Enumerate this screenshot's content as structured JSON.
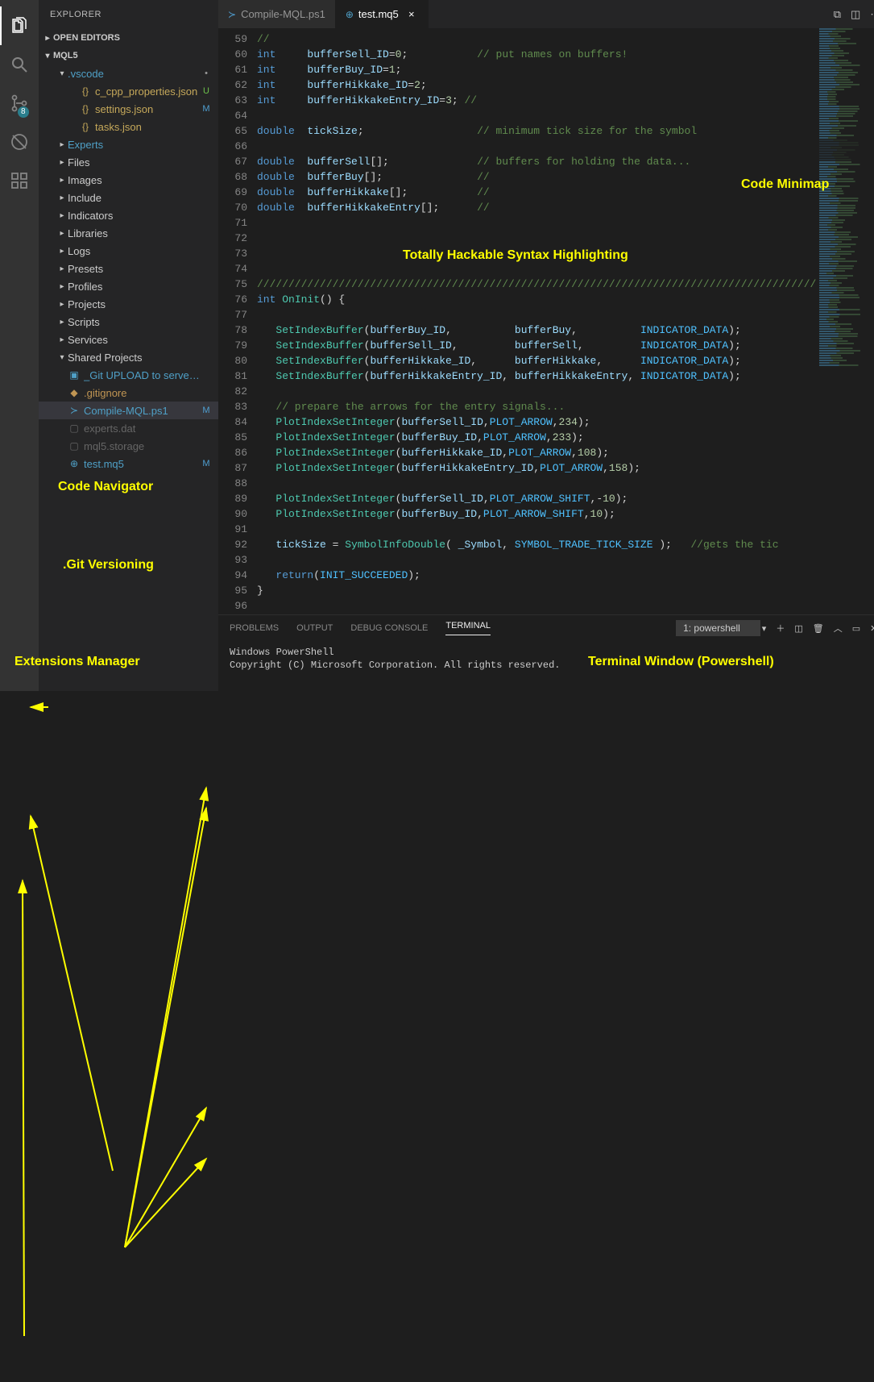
{
  "activityBar": {
    "explorer": "Explorer",
    "search": "Search",
    "scm": "Source Control",
    "scmBadge": "8",
    "debug": "Debug",
    "extensions": "Extensions"
  },
  "sidebar": {
    "title": "EXPLORER",
    "openEditors": "OPEN EDITORS",
    "workspace": "MQL5",
    "tree": [
      {
        "depth": 1,
        "chev": "▾",
        "icon": "",
        "label": ".vscode",
        "cls": "blue",
        "status": "dot"
      },
      {
        "depth": 2,
        "chev": "",
        "icon": "{}",
        "label": "c_cpp_properties.json",
        "cls": "yellowish",
        "status": "U"
      },
      {
        "depth": 2,
        "chev": "",
        "icon": "{}",
        "label": "settings.json",
        "cls": "yellowish",
        "status": "M"
      },
      {
        "depth": 2,
        "chev": "",
        "icon": "{}",
        "label": "tasks.json",
        "cls": "yellowish",
        "status": ""
      },
      {
        "depth": 1,
        "chev": "▸",
        "icon": "",
        "label": "Experts",
        "cls": "blue",
        "status": ""
      },
      {
        "depth": 1,
        "chev": "▸",
        "icon": "",
        "label": "Files",
        "cls": "",
        "status": ""
      },
      {
        "depth": 1,
        "chev": "▸",
        "icon": "",
        "label": "Images",
        "cls": "",
        "status": ""
      },
      {
        "depth": 1,
        "chev": "▸",
        "icon": "",
        "label": "Include",
        "cls": "",
        "status": ""
      },
      {
        "depth": 1,
        "chev": "▸",
        "icon": "",
        "label": "Indicators",
        "cls": "",
        "status": ""
      },
      {
        "depth": 1,
        "chev": "▸",
        "icon": "",
        "label": "Libraries",
        "cls": "",
        "status": ""
      },
      {
        "depth": 1,
        "chev": "▸",
        "icon": "",
        "label": "Logs",
        "cls": "",
        "status": ""
      },
      {
        "depth": 1,
        "chev": "▸",
        "icon": "",
        "label": "Presets",
        "cls": "",
        "status": ""
      },
      {
        "depth": 1,
        "chev": "▸",
        "icon": "",
        "label": "Profiles",
        "cls": "",
        "status": ""
      },
      {
        "depth": 1,
        "chev": "▸",
        "icon": "",
        "label": "Projects",
        "cls": "",
        "status": ""
      },
      {
        "depth": 1,
        "chev": "▸",
        "icon": "",
        "label": "Scripts",
        "cls": "",
        "status": ""
      },
      {
        "depth": 1,
        "chev": "▸",
        "icon": "",
        "label": "Services",
        "cls": "",
        "status": ""
      },
      {
        "depth": 1,
        "chev": "▾",
        "icon": "",
        "label": "Shared Projects",
        "cls": "",
        "status": ""
      },
      {
        "depth": 1,
        "chev": "",
        "icon": "▣",
        "label": "_Git UPLOAD to server.bat",
        "cls": "blue",
        "status": ""
      },
      {
        "depth": 1,
        "chev": "",
        "icon": "◆",
        "label": ".gitignore",
        "cls": "folder-c",
        "status": ""
      },
      {
        "depth": 1,
        "chev": "",
        "icon": "≻",
        "label": "Compile-MQL.ps1",
        "cls": "blue sel",
        "status": "M"
      },
      {
        "depth": 1,
        "chev": "",
        "icon": "▢",
        "label": "experts.dat",
        "cls": "dim",
        "status": ""
      },
      {
        "depth": 1,
        "chev": "",
        "icon": "▢",
        "label": "mql5.storage",
        "cls": "dim",
        "status": ""
      },
      {
        "depth": 1,
        "chev": "",
        "icon": "⊕",
        "label": "test.mq5",
        "cls": "blue",
        "status": "M"
      }
    ]
  },
  "tabs": {
    "items": [
      {
        "icon": "≻",
        "label": "Compile-MQL.ps1",
        "active": false,
        "iconColor": "#4f9fd1"
      },
      {
        "icon": "⊕",
        "label": "test.mq5",
        "active": true,
        "iconColor": "#4fa0c7"
      }
    ]
  },
  "code": {
    "lines": [
      {
        "n": 59,
        "seg": [
          [
            "cm",
            "//"
          ]
        ]
      },
      {
        "n": 60,
        "seg": [
          [
            "kw",
            "int"
          ],
          [
            "plain",
            "     "
          ],
          [
            "id",
            "bufferSell_ID"
          ],
          [
            "op",
            "="
          ],
          [
            "num",
            "0"
          ],
          [
            "op",
            ";"
          ],
          [
            "plain",
            "           "
          ],
          [
            "cm",
            "// put names on buffers!"
          ]
        ]
      },
      {
        "n": 61,
        "seg": [
          [
            "kw",
            "int"
          ],
          [
            "plain",
            "     "
          ],
          [
            "id",
            "bufferBuy_ID"
          ],
          [
            "op",
            "="
          ],
          [
            "num",
            "1"
          ],
          [
            "op",
            ";"
          ]
        ]
      },
      {
        "n": 62,
        "seg": [
          [
            "kw",
            "int"
          ],
          [
            "plain",
            "     "
          ],
          [
            "id",
            "bufferHikkake_ID"
          ],
          [
            "op",
            "="
          ],
          [
            "num",
            "2"
          ],
          [
            "op",
            ";"
          ]
        ]
      },
      {
        "n": 63,
        "seg": [
          [
            "kw",
            "int"
          ],
          [
            "plain",
            "     "
          ],
          [
            "id",
            "bufferHikkakeEntry_ID"
          ],
          [
            "op",
            "="
          ],
          [
            "num",
            "3"
          ],
          [
            "op",
            ";"
          ],
          [
            "plain",
            " "
          ],
          [
            "cm",
            "//"
          ]
        ]
      },
      {
        "n": 64,
        "seg": []
      },
      {
        "n": 65,
        "seg": [
          [
            "kw",
            "double"
          ],
          [
            "plain",
            "  "
          ],
          [
            "id",
            "tickSize"
          ],
          [
            "op",
            ";"
          ],
          [
            "plain",
            "                  "
          ],
          [
            "cm",
            "// minimum tick size for the symbol"
          ]
        ]
      },
      {
        "n": 66,
        "seg": []
      },
      {
        "n": 67,
        "seg": [
          [
            "kw",
            "double"
          ],
          [
            "plain",
            "  "
          ],
          [
            "id",
            "bufferSell"
          ],
          [
            "op",
            "[];"
          ],
          [
            "plain",
            "              "
          ],
          [
            "cm",
            "// buffers for holding the data..."
          ]
        ]
      },
      {
        "n": 68,
        "seg": [
          [
            "kw",
            "double"
          ],
          [
            "plain",
            "  "
          ],
          [
            "id",
            "bufferBuy"
          ],
          [
            "op",
            "[];"
          ],
          [
            "plain",
            "               "
          ],
          [
            "cm",
            "//"
          ]
        ]
      },
      {
        "n": 69,
        "seg": [
          [
            "kw",
            "double"
          ],
          [
            "plain",
            "  "
          ],
          [
            "id",
            "bufferHikkake"
          ],
          [
            "op",
            "[];"
          ],
          [
            "plain",
            "           "
          ],
          [
            "cm",
            "//"
          ]
        ]
      },
      {
        "n": 70,
        "seg": [
          [
            "kw",
            "double"
          ],
          [
            "plain",
            "  "
          ],
          [
            "id",
            "bufferHikkakeEntry"
          ],
          [
            "op",
            "[];"
          ],
          [
            "plain",
            "      "
          ],
          [
            "cm",
            "//"
          ]
        ]
      },
      {
        "n": 71,
        "seg": []
      },
      {
        "n": 72,
        "seg": []
      },
      {
        "n": 73,
        "seg": []
      },
      {
        "n": 74,
        "seg": []
      },
      {
        "n": 75,
        "seg": [
          [
            "cm",
            "/////////////////////////////////////////////////////////////////////////////////////////"
          ]
        ]
      },
      {
        "n": 76,
        "seg": [
          [
            "kw",
            "int"
          ],
          [
            "plain",
            " "
          ],
          [
            "fn",
            "OnInit"
          ],
          [
            "op",
            "() {"
          ]
        ]
      },
      {
        "n": 77,
        "seg": []
      },
      {
        "n": 78,
        "seg": [
          [
            "plain",
            "   "
          ],
          [
            "fn",
            "SetIndexBuffer"
          ],
          [
            "op",
            "("
          ],
          [
            "id",
            "bufferBuy_ID"
          ],
          [
            "op",
            ","
          ],
          [
            "plain",
            "          "
          ],
          [
            "id",
            "bufferBuy"
          ],
          [
            "op",
            ","
          ],
          [
            "plain",
            "          "
          ],
          [
            "const",
            "INDICATOR_DATA"
          ],
          [
            "op",
            ");"
          ]
        ]
      },
      {
        "n": 79,
        "seg": [
          [
            "plain",
            "   "
          ],
          [
            "fn",
            "SetIndexBuffer"
          ],
          [
            "op",
            "("
          ],
          [
            "id",
            "bufferSell_ID"
          ],
          [
            "op",
            ","
          ],
          [
            "plain",
            "         "
          ],
          [
            "id",
            "bufferSell"
          ],
          [
            "op",
            ","
          ],
          [
            "plain",
            "         "
          ],
          [
            "const",
            "INDICATOR_DATA"
          ],
          [
            "op",
            ");"
          ]
        ]
      },
      {
        "n": 80,
        "seg": [
          [
            "plain",
            "   "
          ],
          [
            "fn",
            "SetIndexBuffer"
          ],
          [
            "op",
            "("
          ],
          [
            "id",
            "bufferHikkake_ID"
          ],
          [
            "op",
            ","
          ],
          [
            "plain",
            "      "
          ],
          [
            "id",
            "bufferHikkake"
          ],
          [
            "op",
            ","
          ],
          [
            "plain",
            "      "
          ],
          [
            "const",
            "INDICATOR_DATA"
          ],
          [
            "op",
            ");"
          ]
        ]
      },
      {
        "n": 81,
        "seg": [
          [
            "plain",
            "   "
          ],
          [
            "fn",
            "SetIndexBuffer"
          ],
          [
            "op",
            "("
          ],
          [
            "id",
            "bufferHikkakeEntry_ID"
          ],
          [
            "op",
            ", "
          ],
          [
            "id",
            "bufferHikkakeEntry"
          ],
          [
            "op",
            ", "
          ],
          [
            "const",
            "INDICATOR_DATA"
          ],
          [
            "op",
            ");"
          ]
        ]
      },
      {
        "n": 82,
        "seg": []
      },
      {
        "n": 83,
        "seg": [
          [
            "plain",
            "   "
          ],
          [
            "cm",
            "// prepare the arrows for the entry signals..."
          ]
        ]
      },
      {
        "n": 84,
        "seg": [
          [
            "plain",
            "   "
          ],
          [
            "fn",
            "PlotIndexSetInteger"
          ],
          [
            "op",
            "("
          ],
          [
            "id",
            "bufferSell_ID"
          ],
          [
            "op",
            ","
          ],
          [
            "const",
            "PLOT_ARROW"
          ],
          [
            "op",
            ","
          ],
          [
            "num",
            "234"
          ],
          [
            "op",
            ");"
          ]
        ]
      },
      {
        "n": 85,
        "seg": [
          [
            "plain",
            "   "
          ],
          [
            "fn",
            "PlotIndexSetInteger"
          ],
          [
            "op",
            "("
          ],
          [
            "id",
            "bufferBuy_ID"
          ],
          [
            "op",
            ","
          ],
          [
            "const",
            "PLOT_ARROW"
          ],
          [
            "op",
            ","
          ],
          [
            "num",
            "233"
          ],
          [
            "op",
            ");"
          ]
        ]
      },
      {
        "n": 86,
        "seg": [
          [
            "plain",
            "   "
          ],
          [
            "fn",
            "PlotIndexSetInteger"
          ],
          [
            "op",
            "("
          ],
          [
            "id",
            "bufferHikkake_ID"
          ],
          [
            "op",
            ","
          ],
          [
            "const",
            "PLOT_ARROW"
          ],
          [
            "op",
            ","
          ],
          [
            "num",
            "108"
          ],
          [
            "op",
            ");"
          ]
        ]
      },
      {
        "n": 87,
        "seg": [
          [
            "plain",
            "   "
          ],
          [
            "fn",
            "PlotIndexSetInteger"
          ],
          [
            "op",
            "("
          ],
          [
            "id",
            "bufferHikkakeEntry_ID"
          ],
          [
            "op",
            ","
          ],
          [
            "const",
            "PLOT_ARROW"
          ],
          [
            "op",
            ","
          ],
          [
            "num",
            "158"
          ],
          [
            "op",
            ");"
          ]
        ]
      },
      {
        "n": 88,
        "seg": []
      },
      {
        "n": 89,
        "seg": [
          [
            "plain",
            "   "
          ],
          [
            "fn",
            "PlotIndexSetInteger"
          ],
          [
            "op",
            "("
          ],
          [
            "id",
            "bufferSell_ID"
          ],
          [
            "op",
            ","
          ],
          [
            "const",
            "PLOT_ARROW_SHIFT"
          ],
          [
            "op",
            ",-"
          ],
          [
            "num",
            "10"
          ],
          [
            "op",
            ");"
          ]
        ]
      },
      {
        "n": 90,
        "seg": [
          [
            "plain",
            "   "
          ],
          [
            "fn",
            "PlotIndexSetInteger"
          ],
          [
            "op",
            "("
          ],
          [
            "id",
            "bufferBuy_ID"
          ],
          [
            "op",
            ","
          ],
          [
            "const",
            "PLOT_ARROW_SHIFT"
          ],
          [
            "op",
            ","
          ],
          [
            "num",
            "10"
          ],
          [
            "op",
            ");"
          ]
        ]
      },
      {
        "n": 91,
        "seg": []
      },
      {
        "n": 92,
        "seg": [
          [
            "plain",
            "   "
          ],
          [
            "id",
            "tickSize"
          ],
          [
            "op",
            " = "
          ],
          [
            "fn",
            "SymbolInfoDouble"
          ],
          [
            "op",
            "( "
          ],
          [
            "id",
            "_Symbol"
          ],
          [
            "op",
            ", "
          ],
          [
            "const",
            "SYMBOL_TRADE_TICK_SIZE"
          ],
          [
            "op",
            " );   "
          ],
          [
            "cm",
            "//gets the tic"
          ]
        ]
      },
      {
        "n": 93,
        "seg": []
      },
      {
        "n": 94,
        "seg": [
          [
            "plain",
            "   "
          ],
          [
            "kw",
            "return"
          ],
          [
            "op",
            "("
          ],
          [
            "const",
            "INIT_SUCCEEDED"
          ],
          [
            "op",
            ");"
          ]
        ]
      },
      {
        "n": 95,
        "seg": [
          [
            "op",
            "}"
          ]
        ]
      },
      {
        "n": 96,
        "seg": []
      }
    ]
  },
  "panel": {
    "tabs": {
      "problems": "PROBLEMS",
      "output": "OUTPUT",
      "debug": "DEBUG CONSOLE",
      "terminal": "TERMINAL"
    },
    "termSelect": "1: powershell",
    "termLines": [
      "Windows PowerShell",
      "Copyright (C) Microsoft Corporation. All rights reserved."
    ]
  },
  "annotations": {
    "minimap": "Code Minimap",
    "syntax": "Totally Hackable Syntax Highlighting",
    "navigator": "Code Navigator",
    "git": ".Git Versioning",
    "ext": "Extensions Manager",
    "term": "Terminal Window (Powershell)"
  },
  "colors": {
    "annotation": "#ffff00",
    "bg": "#1e1e1e",
    "sidebar": "#252526",
    "activity": "#333333"
  }
}
